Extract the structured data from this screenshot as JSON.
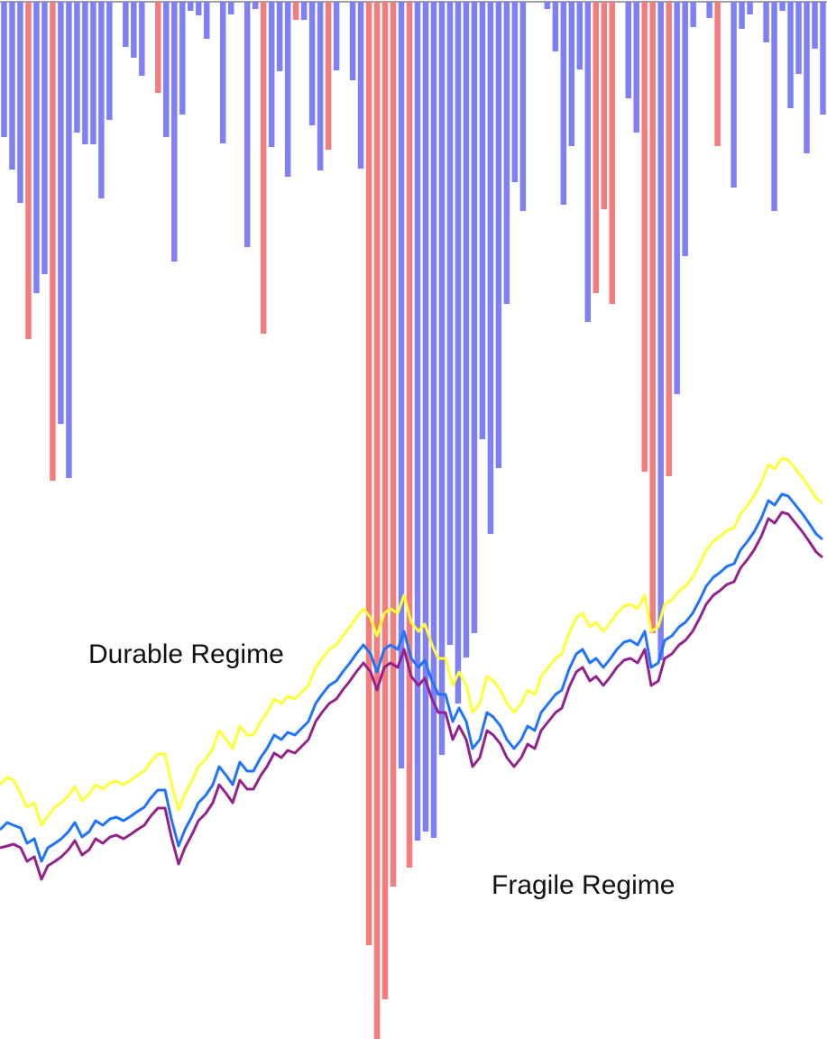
{
  "chart_data": [
    {
      "type": "bar",
      "ylim": [
        0,
        1150
      ],
      "colors": {
        "normal": "#7f7ff6",
        "highlight": "#f47c7c"
      },
      "bars": [
        {
          "value": 150,
          "color": "normal"
        },
        {
          "value": 186,
          "color": "normal"
        },
        {
          "value": 223,
          "color": "normal"
        },
        {
          "value": 374,
          "color": "highlight"
        },
        {
          "value": 323,
          "color": "normal"
        },
        {
          "value": 302,
          "color": "normal"
        },
        {
          "value": 531,
          "color": "highlight"
        },
        {
          "value": 468,
          "color": "normal"
        },
        {
          "value": 528,
          "color": "normal"
        },
        {
          "value": 145,
          "color": "normal"
        },
        {
          "value": 158,
          "color": "normal"
        },
        {
          "value": 158,
          "color": "normal"
        },
        {
          "value": 218,
          "color": "normal"
        },
        {
          "value": 131,
          "color": "normal"
        },
        {
          "value": 0,
          "color": "normal"
        },
        {
          "value": 50,
          "color": "normal"
        },
        {
          "value": 62,
          "color": "normal"
        },
        {
          "value": 82,
          "color": "normal"
        },
        {
          "value": 0,
          "color": "normal"
        },
        {
          "value": 101,
          "color": "highlight"
        },
        {
          "value": 150,
          "color": "normal"
        },
        {
          "value": 288,
          "color": "normal"
        },
        {
          "value": 125,
          "color": "normal"
        },
        {
          "value": 10,
          "color": "normal"
        },
        {
          "value": 15,
          "color": "normal"
        },
        {
          "value": 41,
          "color": "normal"
        },
        {
          "value": 0,
          "color": "normal"
        },
        {
          "value": 157,
          "color": "normal"
        },
        {
          "value": 14,
          "color": "normal"
        },
        {
          "value": 0,
          "color": "normal"
        },
        {
          "value": 272,
          "color": "normal"
        },
        {
          "value": 8,
          "color": "normal"
        },
        {
          "value": 368,
          "color": "highlight"
        },
        {
          "value": 161,
          "color": "normal"
        },
        {
          "value": 77,
          "color": "normal"
        },
        {
          "value": 194,
          "color": "normal"
        },
        {
          "value": 20,
          "color": "highlight"
        },
        {
          "value": 20,
          "color": "normal"
        },
        {
          "value": 137,
          "color": "normal"
        },
        {
          "value": 187,
          "color": "normal"
        },
        {
          "value": 164,
          "color": "highlight"
        },
        {
          "value": 76,
          "color": "normal"
        },
        {
          "value": 0,
          "color": "normal"
        },
        {
          "value": 87,
          "color": "normal"
        },
        {
          "value": 185,
          "color": "normal"
        },
        {
          "value": 1046,
          "color": "highlight"
        },
        {
          "value": 1150,
          "color": "highlight"
        },
        {
          "value": 1106,
          "color": "highlight"
        },
        {
          "value": 981,
          "color": "highlight"
        },
        {
          "value": 850,
          "color": "normal"
        },
        {
          "value": 960,
          "color": "highlight"
        },
        {
          "value": 930,
          "color": "normal"
        },
        {
          "value": 920,
          "color": "normal"
        },
        {
          "value": 927,
          "color": "normal"
        },
        {
          "value": 835,
          "color": "normal"
        },
        {
          "value": 713,
          "color": "normal"
        },
        {
          "value": 778,
          "color": "normal"
        },
        {
          "value": 727,
          "color": "normal"
        },
        {
          "value": 700,
          "color": "normal"
        },
        {
          "value": 485,
          "color": "normal"
        },
        {
          "value": 590,
          "color": "normal"
        },
        {
          "value": 517,
          "color": "normal"
        },
        {
          "value": 335,
          "color": "normal"
        },
        {
          "value": 200,
          "color": "normal"
        },
        {
          "value": 232,
          "color": "normal"
        },
        {
          "value": 0,
          "color": "normal"
        },
        {
          "value": 0,
          "color": "normal"
        },
        {
          "value": 8,
          "color": "normal"
        },
        {
          "value": 55,
          "color": "normal"
        },
        {
          "value": 225,
          "color": "normal"
        },
        {
          "value": 160,
          "color": "normal"
        },
        {
          "value": 75,
          "color": "normal"
        },
        {
          "value": 355,
          "color": "normal"
        },
        {
          "value": 323,
          "color": "highlight"
        },
        {
          "value": 230,
          "color": "highlight"
        },
        {
          "value": 335,
          "color": "highlight"
        },
        {
          "value": 0,
          "color": "normal"
        },
        {
          "value": 107,
          "color": "normal"
        },
        {
          "value": 145,
          "color": "normal"
        },
        {
          "value": 521,
          "color": "highlight"
        },
        {
          "value": 700,
          "color": "highlight"
        },
        {
          "value": 730,
          "color": "normal"
        },
        {
          "value": 526,
          "color": "highlight"
        },
        {
          "value": 435,
          "color": "normal"
        },
        {
          "value": 282,
          "color": "normal"
        },
        {
          "value": 28,
          "color": "normal"
        },
        {
          "value": 0,
          "color": "normal"
        },
        {
          "value": 18,
          "color": "normal"
        },
        {
          "value": 160,
          "color": "highlight"
        },
        {
          "value": 0,
          "color": "normal"
        },
        {
          "value": 206,
          "color": "normal"
        },
        {
          "value": 30,
          "color": "normal"
        },
        {
          "value": 14,
          "color": "normal"
        },
        {
          "value": 0,
          "color": "normal"
        },
        {
          "value": 45,
          "color": "normal"
        },
        {
          "value": 232,
          "color": "normal"
        },
        {
          "value": 10,
          "color": "normal"
        },
        {
          "value": 118,
          "color": "normal"
        },
        {
          "value": 80,
          "color": "normal"
        },
        {
          "value": 168,
          "color": "normal"
        },
        {
          "value": 52,
          "color": "normal"
        },
        {
          "value": 125,
          "color": "normal"
        }
      ]
    },
    {
      "type": "line",
      "ylim": [
        0,
        1152
      ],
      "x": [
        0,
        8,
        15,
        23,
        30,
        38,
        46,
        53,
        61,
        68,
        76,
        83,
        91,
        99,
        106,
        114,
        122,
        129,
        137,
        145,
        152,
        160,
        167,
        175,
        183,
        190,
        198,
        205,
        213,
        220,
        228,
        236,
        243,
        251,
        258,
        266,
        274,
        281,
        289,
        296,
        304,
        312,
        319,
        327,
        334,
        342,
        350,
        357,
        365,
        373,
        380,
        388,
        395,
        403,
        411,
        418,
        426,
        433,
        441,
        448,
        456,
        464,
        471,
        479,
        486,
        494,
        502,
        509,
        517,
        524,
        532,
        540,
        547,
        555,
        562,
        570,
        578,
        585,
        593,
        600,
        608,
        616,
        623,
        631,
        639,
        646,
        654,
        661,
        669,
        677,
        684,
        692,
        699,
        707,
        715,
        722,
        730,
        737,
        745,
        753,
        760,
        768,
        776,
        783,
        791,
        798,
        806,
        814,
        821,
        829,
        836,
        844,
        852,
        859,
        867,
        874,
        882,
        890,
        897,
        905,
        912
      ],
      "series": [
        {
          "color": "#1e73ff",
          "values": [
            920,
            912,
            915,
            918,
            935,
            930,
            955,
            940,
            935,
            930,
            922,
            912,
            928,
            922,
            910,
            915,
            908,
            906,
            910,
            905,
            900,
            895,
            885,
            876,
            876,
            908,
            938,
            920,
            905,
            890,
            882,
            870,
            850,
            860,
            870,
            845,
            855,
            855,
            840,
            830,
            815,
            820,
            812,
            815,
            808,
            800,
            780,
            770,
            760,
            755,
            745,
            735,
            725,
            715,
            725,
            745,
            720,
            715,
            720,
            700,
            730,
            740,
            732,
            755,
            770,
            770,
            800,
            785,
            800,
            830,
            820,
            790,
            795,
            805,
            820,
            830,
            820,
            805,
            810,
            790,
            780,
            770,
            765,
            742,
            725,
            720,
            735,
            730,
            740,
            730,
            720,
            712,
            710,
            715,
            700,
            740,
            735,
            710,
            705,
            695,
            690,
            680,
            665,
            650,
            640,
            635,
            628,
            625,
            610,
            600,
            590,
            575,
            555,
            560,
            548,
            550,
            560,
            570,
            580,
            592,
            598
          ]
        },
        {
          "color": "#ffff33",
          "values": [
            870,
            862,
            865,
            880,
            895,
            890,
            915,
            905,
            895,
            890,
            882,
            872,
            888,
            880,
            870,
            875,
            868,
            866,
            870,
            865,
            860,
            855,
            845,
            836,
            836,
            868,
            898,
            880,
            865,
            850,
            842,
            830,
            810,
            820,
            830,
            805,
            815,
            815,
            800,
            790,
            775,
            780,
            772,
            775,
            768,
            760,
            740,
            730,
            720,
            715,
            705,
            695,
            685,
            675,
            685,
            705,
            680,
            675,
            680,
            660,
            690,
            700,
            692,
            715,
            730,
            730,
            760,
            745,
            760,
            790,
            780,
            750,
            755,
            765,
            780,
            790,
            780,
            765,
            770,
            750,
            740,
            730,
            725,
            702,
            685,
            680,
            695,
            690,
            700,
            690,
            680,
            672,
            670,
            675,
            660,
            700,
            695,
            670,
            665,
            655,
            650,
            640,
            625,
            610,
            600,
            595,
            588,
            585,
            570,
            560,
            550,
            535,
            515,
            520,
            508,
            510,
            520,
            530,
            540,
            552,
            558
          ]
        },
        {
          "color": "#94228c",
          "values": [
            940,
            938,
            936,
            940,
            955,
            950,
            975,
            960,
            955,
            950,
            942,
            932,
            948,
            942,
            930,
            935,
            928,
            926,
            930,
            925,
            920,
            915,
            905,
            896,
            896,
            928,
            958,
            940,
            925,
            910,
            902,
            890,
            870,
            880,
            890,
            865,
            875,
            875,
            860,
            850,
            835,
            840,
            832,
            835,
            828,
            820,
            800,
            790,
            780,
            775,
            765,
            755,
            745,
            735,
            745,
            765,
            740,
            735,
            740,
            720,
            750,
            760,
            752,
            775,
            790,
            790,
            820,
            805,
            820,
            850,
            840,
            810,
            815,
            825,
            840,
            850,
            840,
            825,
            830,
            810,
            800,
            790,
            785,
            762,
            745,
            740,
            755,
            750,
            760,
            750,
            740,
            732,
            730,
            735,
            720,
            760,
            755,
            730,
            725,
            715,
            710,
            700,
            685,
            670,
            660,
            655,
            648,
            645,
            630,
            620,
            610,
            595,
            575,
            580,
            568,
            570,
            580,
            590,
            600,
            612,
            618
          ]
        }
      ]
    }
  ],
  "annotations": {
    "durable": "Durable Regime",
    "fragile": "Fragile Regime"
  }
}
